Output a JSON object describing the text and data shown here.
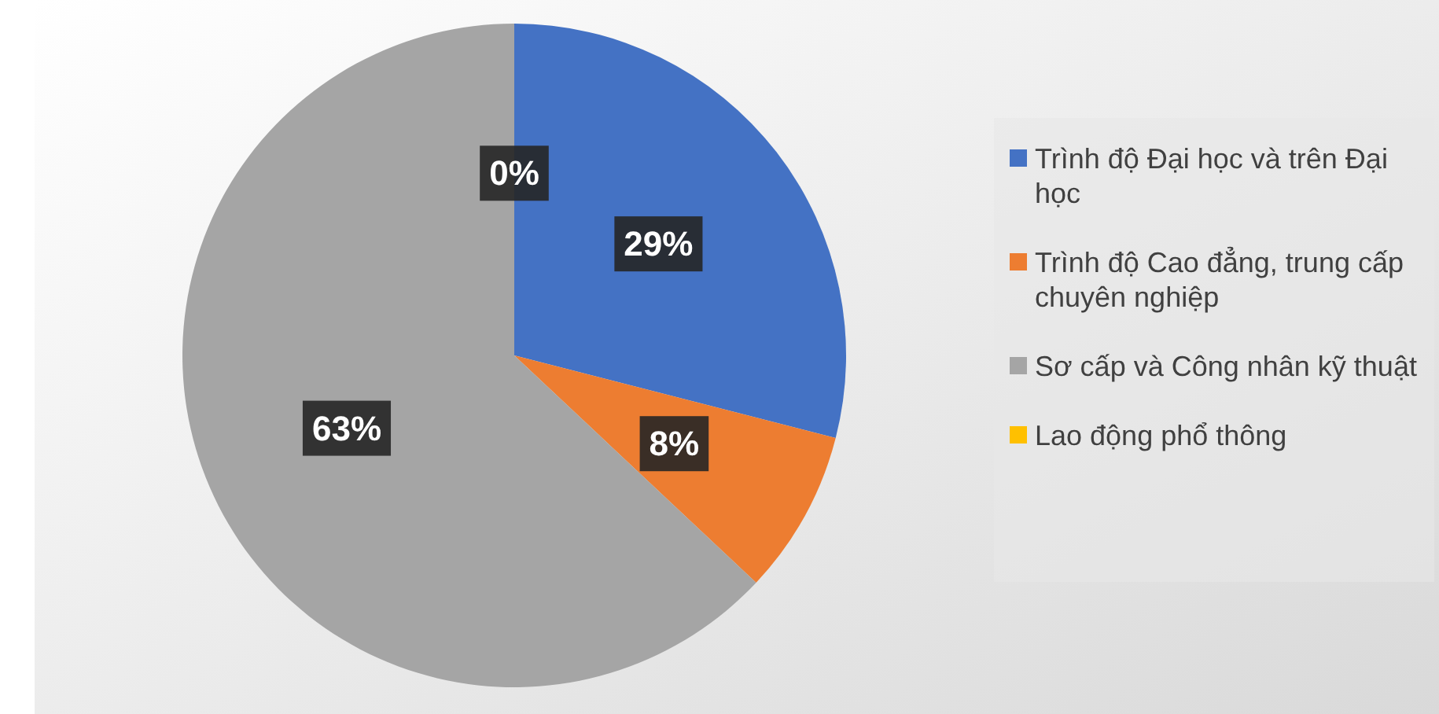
{
  "chart_data": {
    "type": "pie",
    "categories": [
      "Trình độ Đại học và trên Đại học",
      "Trình độ Cao đẳng, trung cấp chuyên nghiệp",
      "Sơ cấp và Công nhân kỹ thuật",
      "Lao động phổ thông"
    ],
    "values": [
      29,
      8,
      63,
      0
    ],
    "colors": [
      "#4472c4",
      "#ed7d31",
      "#a5a5a5",
      "#ffc000"
    ],
    "value_labels": [
      "29%",
      "8%",
      "63%",
      "0%"
    ],
    "legend": "right"
  }
}
